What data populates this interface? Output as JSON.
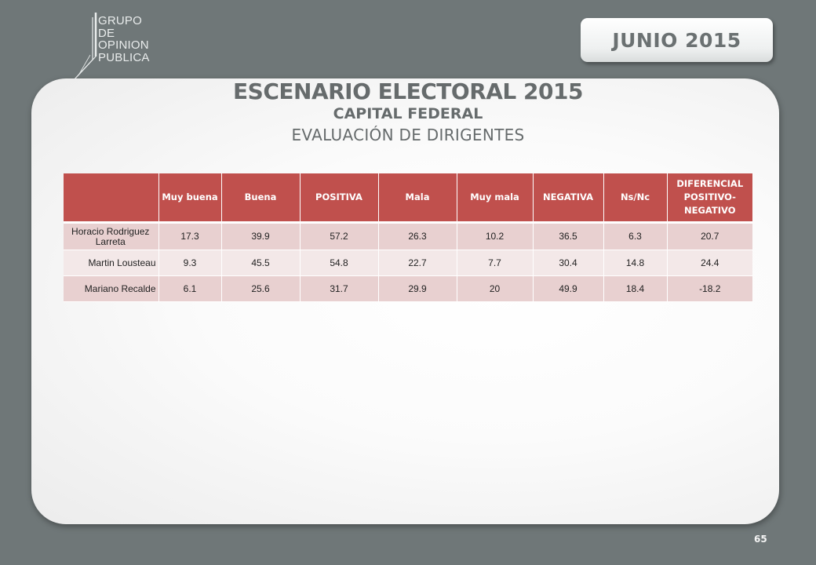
{
  "logo": {
    "lines": [
      "GRUPO",
      "DE",
      "OPINION",
      "PUBLICA"
    ]
  },
  "date_label": "JUNIO 2015",
  "title": "ESCENARIO ELECTORAL 2015",
  "subtitle": "CAPITAL FEDERAL",
  "subtitle2": "EVALUACIÓN DE DIRIGENTES",
  "table": {
    "headers": [
      "",
      "Muy buena",
      "Buena",
      "POSITIVA",
      "Mala",
      "Muy mala",
      "NEGATIVA",
      "Ns/Nc",
      "DIFERENCIAL POSITIVO-NEGATIVO"
    ],
    "rows": [
      {
        "name": "Horacio Rodriguez Larreta",
        "values": [
          "17.3",
          "39.9",
          "57.2",
          "26.3",
          "10.2",
          "36.5",
          "6.3",
          "20.7"
        ]
      },
      {
        "name": "Martin Lousteau",
        "values": [
          "9.3",
          "45.5",
          "54.8",
          "22.7",
          "7.7",
          "30.4",
          "14.8",
          "24.4"
        ]
      },
      {
        "name": "Mariano Recalde",
        "values": [
          "6.1",
          "25.6",
          "31.7",
          "29.9",
          "20",
          "49.9",
          "18.4",
          "-18.2"
        ]
      }
    ]
  },
  "page_number": "65",
  "colors": {
    "background": "#6f7778",
    "header_red": "#c0504d",
    "row_dark": "#e8d0d0",
    "row_light": "#f3e8e8",
    "title_gray": "#666b6c"
  }
}
